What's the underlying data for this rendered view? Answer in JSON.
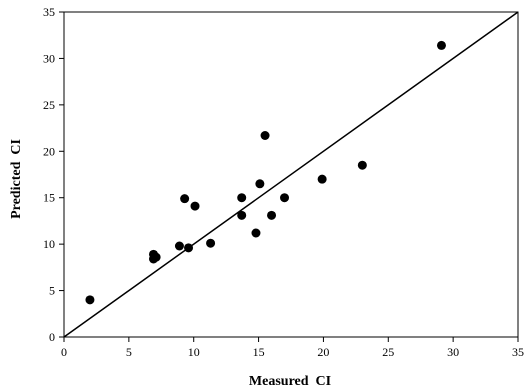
{
  "chart_data": {
    "type": "scatter",
    "title": "",
    "xlabel": "Measured  CI",
    "ylabel": "Predicted  CI",
    "xlim": [
      0,
      35
    ],
    "ylim": [
      0,
      35
    ],
    "xticks": [
      0,
      5,
      10,
      15,
      20,
      25,
      30,
      35
    ],
    "yticks": [
      0,
      5,
      10,
      15,
      20,
      25,
      30,
      35
    ],
    "grid": false,
    "legend": "none",
    "reference_line": {
      "from": [
        0,
        0
      ],
      "to": [
        35,
        35
      ]
    },
    "colors": {
      "points": "#000000",
      "line": "#000000",
      "axis": "#000000"
    },
    "points": [
      {
        "x": 2.0,
        "y": 4.0
      },
      {
        "x": 6.9,
        "y": 8.9
      },
      {
        "x": 6.9,
        "y": 8.4
      },
      {
        "x": 7.1,
        "y": 8.6
      },
      {
        "x": 8.9,
        "y": 9.8
      },
      {
        "x": 9.3,
        "y": 14.9
      },
      {
        "x": 9.6,
        "y": 9.6
      },
      {
        "x": 10.1,
        "y": 14.1
      },
      {
        "x": 11.3,
        "y": 10.1
      },
      {
        "x": 13.7,
        "y": 15.0
      },
      {
        "x": 13.7,
        "y": 13.1
      },
      {
        "x": 14.8,
        "y": 11.2
      },
      {
        "x": 15.1,
        "y": 16.5
      },
      {
        "x": 15.5,
        "y": 21.7
      },
      {
        "x": 16.0,
        "y": 13.1
      },
      {
        "x": 17.0,
        "y": 15.0
      },
      {
        "x": 19.9,
        "y": 17.0
      },
      {
        "x": 23.0,
        "y": 18.5
      },
      {
        "x": 29.1,
        "y": 31.4
      }
    ]
  }
}
